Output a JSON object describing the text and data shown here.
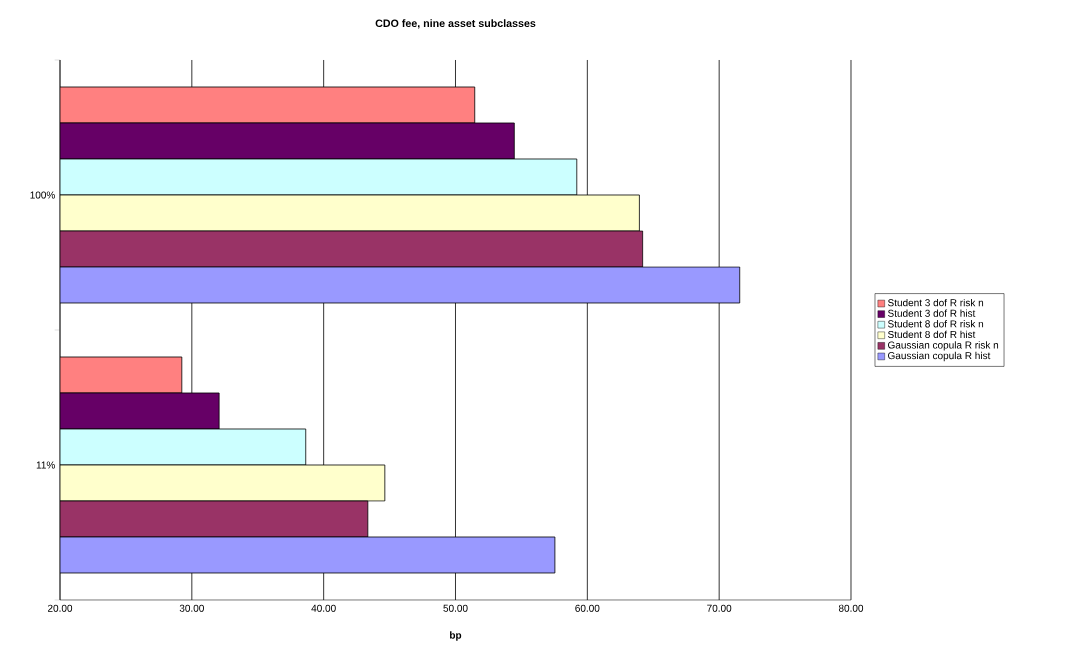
{
  "chart_data": {
    "type": "bar",
    "orientation": "horizontal",
    "title": "CDO fee, nine asset subclasses",
    "xlabel": "bp",
    "categories": [
      "100%",
      "11%"
    ],
    "series": [
      {
        "name": "Student 3 dof R risk n",
        "color": "#ff8080",
        "values": [
          51.46,
          29.24
        ]
      },
      {
        "name": "Student 3 dof R hist",
        "color": "#660066",
        "values": [
          54.46,
          32.07
        ]
      },
      {
        "name": "Student 8 dof R risk n",
        "color": "#ccffff",
        "values": [
          59.2,
          38.64
        ]
      },
      {
        "name": "Student 8 dof R hist",
        "color": "#ffffcc",
        "values": [
          63.95,
          44.64
        ]
      },
      {
        "name": "Gaussian copula R risk n",
        "color": "#993366",
        "values": [
          64.2,
          43.35
        ]
      },
      {
        "name": "Gaussian copula R hist",
        "color": "#9999ff",
        "values": [
          71.56,
          57.54
        ]
      }
    ],
    "xlim": [
      20,
      80
    ],
    "xticks": [
      {
        "value": 20,
        "label": "20.00"
      },
      {
        "value": 30,
        "label": "30.00"
      },
      {
        "value": 40,
        "label": "40.00"
      },
      {
        "value": 50,
        "label": "50.00"
      },
      {
        "value": 60,
        "label": "60.00"
      },
      {
        "value": 70,
        "label": "70.00"
      },
      {
        "value": 80,
        "label": "80.00"
      }
    ],
    "grid": "x",
    "legend": "right"
  }
}
